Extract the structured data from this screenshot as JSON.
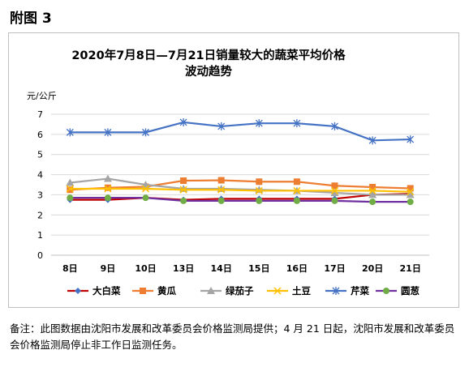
{
  "figure_label": "附图 3",
  "note": "备注：此图数据由沈阳市发展和改革委员会价格监测局提供；4 月 21 日起，沈阳市发展和改革委员会价格监测局停止非工作日监测任务。",
  "chart_data": {
    "type": "line",
    "title_line1": "2020年7月8日—7月21日销量较大的蔬菜平均价格",
    "title_line2": "波动趋势",
    "ylabel": "元/公斤",
    "xlabel": "",
    "categories": [
      "8日",
      "9日",
      "10日",
      "13日",
      "14日",
      "15日",
      "16日",
      "17日",
      "20日",
      "21日"
    ],
    "ylim": [
      0,
      7
    ],
    "yticks": [
      0,
      1,
      2,
      3,
      4,
      5,
      6,
      7
    ],
    "grid": true,
    "legend_position": "bottom",
    "series": [
      {
        "name": "大白菜",
        "color": "#c00000",
        "marker": "diamond",
        "marker_color": "#4472c4",
        "values": [
          2.75,
          2.75,
          2.85,
          2.75,
          2.8,
          2.8,
          2.8,
          2.8,
          3.0,
          3.05
        ]
      },
      {
        "name": "黄瓜",
        "color": "#ed7d31",
        "marker": "square",
        "marker_color": "#ed7d31",
        "values": [
          3.25,
          3.35,
          3.4,
          3.7,
          3.72,
          3.65,
          3.65,
          3.45,
          3.38,
          3.32
        ]
      },
      {
        "name": "绿茄子",
        "color": "#a5a5a5",
        "marker": "triangle",
        "marker_color": "#a5a5a5",
        "values": [
          3.6,
          3.8,
          3.5,
          3.3,
          3.3,
          3.25,
          3.2,
          3.1,
          3.0,
          3.0
        ]
      },
      {
        "name": "土豆",
        "color": "#ffc000",
        "marker": "x",
        "marker_color": "#ffc000",
        "values": [
          3.3,
          3.3,
          3.3,
          3.25,
          3.25,
          3.2,
          3.2,
          3.2,
          3.2,
          3.15
        ]
      },
      {
        "name": "芹菜",
        "color": "#4472c4",
        "marker": "star",
        "marker_color": "#4472c4",
        "values": [
          6.1,
          6.1,
          6.1,
          6.6,
          6.4,
          6.55,
          6.55,
          6.4,
          5.7,
          5.75
        ]
      },
      {
        "name": "圆葱",
        "color": "#7030a0",
        "marker": "circle",
        "marker_color": "#70ad47",
        "values": [
          2.85,
          2.85,
          2.85,
          2.7,
          2.7,
          2.7,
          2.7,
          2.7,
          2.65,
          2.65
        ]
      }
    ]
  }
}
